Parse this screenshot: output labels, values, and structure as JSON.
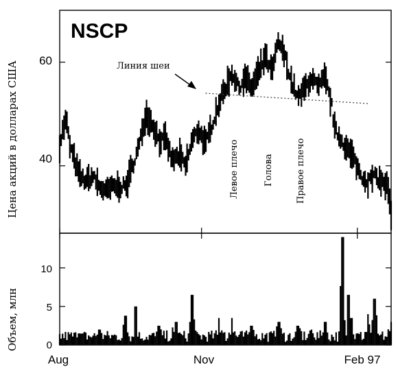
{
  "chart_data": {
    "type": "bar",
    "title": "NSCP",
    "colors": {
      "ink": "#000000",
      "neckline": "#444444"
    },
    "x_ticks": [
      {
        "label": "Aug",
        "pos": 0
      },
      {
        "label": "Nov",
        "pos": 0.428
      },
      {
        "label": "Feb 97",
        "pos": 0.898
      }
    ],
    "price_panel": {
      "ylabel": "Цена акций в долларах США",
      "ylim": [
        27,
        70
      ],
      "yticks": [
        40,
        60
      ],
      "anchors": [
        [
          0,
          44
        ],
        [
          0.01,
          47
        ],
        [
          0.02,
          49
        ],
        [
          0.03,
          44
        ],
        [
          0.045,
          41
        ],
        [
          0.06,
          38
        ],
        [
          0.08,
          37
        ],
        [
          0.1,
          38
        ],
        [
          0.12,
          36
        ],
        [
          0.14,
          35
        ],
        [
          0.16,
          36
        ],
        [
          0.18,
          36
        ],
        [
          0.2,
          36
        ],
        [
          0.22,
          40
        ],
        [
          0.24,
          44
        ],
        [
          0.26,
          50
        ],
        [
          0.28,
          48
        ],
        [
          0.3,
          45
        ],
        [
          0.32,
          45
        ],
        [
          0.34,
          41
        ],
        [
          0.36,
          42
        ],
        [
          0.38,
          40
        ],
        [
          0.4,
          45
        ],
        [
          0.42,
          47
        ],
        [
          0.44,
          44
        ],
        [
          0.46,
          48
        ],
        [
          0.48,
          52
        ],
        [
          0.5,
          55
        ],
        [
          0.52,
          58
        ],
        [
          0.54,
          55
        ],
        [
          0.56,
          57
        ],
        [
          0.58,
          55
        ],
        [
          0.6,
          58
        ],
        [
          0.62,
          61
        ],
        [
          0.64,
          58
        ],
        [
          0.66,
          64
        ],
        [
          0.68,
          61
        ],
        [
          0.7,
          56
        ],
        [
          0.72,
          53
        ],
        [
          0.74,
          55
        ],
        [
          0.76,
          57
        ],
        [
          0.78,
          55
        ],
        [
          0.8,
          57
        ],
        [
          0.82,
          52
        ],
        [
          0.83,
          47
        ],
        [
          0.85,
          45
        ],
        [
          0.87,
          43
        ],
        [
          0.89,
          41
        ],
        [
          0.91,
          38
        ],
        [
          0.93,
          37
        ],
        [
          0.95,
          38
        ],
        [
          0.97,
          37
        ],
        [
          0.99,
          36
        ],
        [
          1.0,
          30
        ]
      ],
      "neckline": [
        [
          0.44,
          54
        ],
        [
          0.93,
          52
        ]
      ]
    },
    "volume_panel": {
      "ylabel": "Объем, млн",
      "ylim": [
        0,
        14.5
      ],
      "yticks": [
        0,
        5,
        10
      ],
      "spikes": [
        [
          0.06,
          1.5
        ],
        [
          0.12,
          2
        ],
        [
          0.2,
          3.8
        ],
        [
          0.23,
          5
        ],
        [
          0.3,
          2.5
        ],
        [
          0.35,
          3
        ],
        [
          0.4,
          6.5
        ],
        [
          0.48,
          3.5
        ],
        [
          0.52,
          3.5
        ],
        [
          0.58,
          2.5
        ],
        [
          0.66,
          3
        ],
        [
          0.72,
          2.5
        ],
        [
          0.76,
          2
        ],
        [
          0.8,
          3
        ],
        [
          0.855,
          14
        ],
        [
          0.87,
          6.5
        ],
        [
          0.88,
          3.5
        ],
        [
          0.93,
          4
        ],
        [
          0.95,
          6
        ],
        [
          1.0,
          3
        ]
      ]
    },
    "annotations": [
      {
        "text": "Линия шеи"
      },
      {
        "text": "Левое плечо"
      },
      {
        "text": "Голова"
      },
      {
        "text": "Правое плечо"
      }
    ]
  }
}
